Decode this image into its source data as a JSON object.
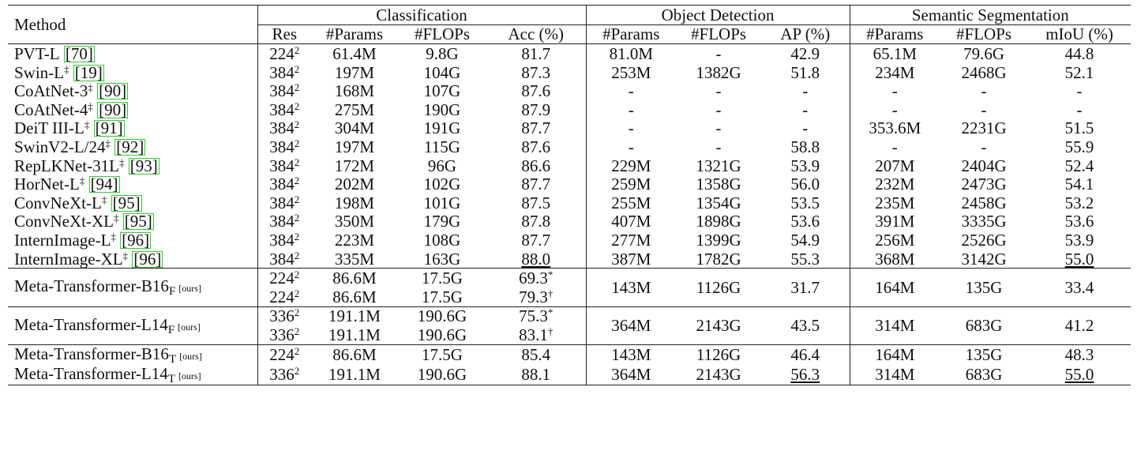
{
  "header": {
    "method": "Method",
    "groups": {
      "classification": "Classification",
      "detection": "Object Detection",
      "segmentation": "Semantic Segmentation"
    },
    "cols": [
      "Res",
      "#Params",
      "#FLOPs",
      "Acc (%)",
      "#Params",
      "#FLOPs",
      "AP (%)",
      "#Params",
      "#FLOPs",
      "mIoU (%)"
    ]
  },
  "rows": [
    {
      "name": "PVT-L",
      "sup": "",
      "cite": "[70]",
      "res": "224",
      "cp": "61.4M",
      "cf": "9.8G",
      "acc": "81.7",
      "dp": "81.0M",
      "df": "-",
      "ap": "42.9",
      "sp": "65.1M",
      "sf": "79.6G",
      "miou": "44.8"
    },
    {
      "name": "Swin-L",
      "sup": "‡",
      "cite": "[19]",
      "res": "384",
      "cp": "197M",
      "cf": "104G",
      "acc": "87.3",
      "dp": "253M",
      "df": "1382G",
      "ap": "51.8",
      "sp": "234M",
      "sf": "2468G",
      "miou": "52.1"
    },
    {
      "name": "CoAtNet-3",
      "sup": "‡",
      "cite": "[90]",
      "res": "384",
      "cp": "168M",
      "cf": "107G",
      "acc": "87.6",
      "dp": "-",
      "df": "-",
      "ap": "-",
      "sp": "-",
      "sf": "-",
      "miou": "-"
    },
    {
      "name": "CoAtNet-4",
      "sup": "‡",
      "cite": "[90]",
      "res": "384",
      "cp": "275M",
      "cf": "190G",
      "acc": "87.9",
      "dp": "-",
      "df": "-",
      "ap": "-",
      "sp": "-",
      "sf": "-",
      "miou": "-"
    },
    {
      "name": "DeiT III-L",
      "sup": "‡",
      "cite": "[91]",
      "res": "384",
      "cp": "304M",
      "cf": "191G",
      "acc": "87.7",
      "dp": "-",
      "df": "-",
      "ap": "-",
      "sp": "353.6M",
      "sf": "2231G",
      "miou": "51.5"
    },
    {
      "name": "SwinV2-L/24",
      "sup": "‡",
      "cite": "[92]",
      "res": "384",
      "cp": "197M",
      "cf": "115G",
      "acc": "87.6",
      "dp": "-",
      "df": "-",
      "ap": "58.8",
      "sp": "-",
      "sf": "-",
      "miou": "55.9"
    },
    {
      "name": "RepLKNet-31L",
      "sup": "‡",
      "cite": "[93]",
      "res": "384",
      "cp": "172M",
      "cf": "96G",
      "acc": "86.6",
      "dp": "229M",
      "df": "1321G",
      "ap": "53.9",
      "sp": "207M",
      "sf": "2404G",
      "miou": "52.4"
    },
    {
      "name": "HorNet-L",
      "sup": "‡",
      "cite": "[94]",
      "res": "384",
      "cp": "202M",
      "cf": "102G",
      "acc": "87.7",
      "dp": "259M",
      "df": "1358G",
      "ap": "56.0",
      "sp": "232M",
      "sf": "2473G",
      "miou": "54.1"
    },
    {
      "name": "ConvNeXt-L",
      "sup": "‡",
      "cite": "[95]",
      "res": "384",
      "cp": "198M",
      "cf": "101G",
      "acc": "87.5",
      "dp": "255M",
      "df": "1354G",
      "ap": "53.5",
      "sp": "235M",
      "sf": "2458G",
      "miou": "53.2"
    },
    {
      "name": "ConvNeXt-XL",
      "sup": "‡",
      "cite": "[95]",
      "res": "384",
      "cp": "350M",
      "cf": "179G",
      "acc": "87.8",
      "dp": "407M",
      "df": "1898G",
      "ap": "53.6",
      "sp": "391M",
      "sf": "3335G",
      "miou": "53.6"
    },
    {
      "name": "InternImage-L",
      "sup": "‡",
      "cite": "[96]",
      "res": "384",
      "cp": "223M",
      "cf": "108G",
      "acc": "87.7",
      "dp": "277M",
      "df": "1399G",
      "ap": "54.9",
      "sp": "256M",
      "sf": "2526G",
      "miou": "53.9"
    },
    {
      "name": "InternImage-XL",
      "sup": "‡",
      "cite": "[96]",
      "res": "384",
      "cp": "335M",
      "cf": "163G",
      "acc": "88.0",
      "dp": "387M",
      "df": "1782G",
      "ap": "55.3",
      "sp": "368M",
      "sf": "3142G",
      "miou": "55.0"
    }
  ],
  "ours_tag": "[ours]",
  "res_exp": "2",
  "meta": {
    "b16f": {
      "name": "Meta-Transformer-B16",
      "sub": "F",
      "r1": {
        "res": "224",
        "cp": "86.6M",
        "cf": "17.5G",
        "acc": "69.3",
        "mark": "*"
      },
      "r2": {
        "res": "224",
        "cp": "86.6M",
        "cf": "17.5G",
        "acc": "79.3",
        "mark": "†"
      },
      "dp": "143M",
      "df": "1126G",
      "ap": "31.7",
      "sp": "164M",
      "sf": "135G",
      "miou": "33.4"
    },
    "l14f": {
      "name": "Meta-Transformer-L14",
      "sub": "F",
      "r1": {
        "res": "336",
        "cp": "191.1M",
        "cf": "190.6G",
        "acc": "75.3",
        "mark": "*"
      },
      "r2": {
        "res": "336",
        "cp": "191.1M",
        "cf": "190.6G",
        "acc": "83.1",
        "mark": "†"
      },
      "dp": "364M",
      "df": "2143G",
      "ap": "43.5",
      "sp": "314M",
      "sf": "683G",
      "miou": "41.2"
    },
    "b16t": {
      "name": "Meta-Transformer-B16",
      "sub": "T",
      "res": "224",
      "cp": "86.6M",
      "cf": "17.5G",
      "acc": "85.4",
      "dp": "143M",
      "df": "1126G",
      "ap": "46.4",
      "sp": "164M",
      "sf": "135G",
      "miou": "48.3"
    },
    "l14t": {
      "name": "Meta-Transformer-L14",
      "sub": "T",
      "res": "336",
      "cp": "191.1M",
      "cf": "190.6G",
      "acc": "88.1",
      "dp": "364M",
      "df": "2143G",
      "ap": "56.3",
      "sp": "314M",
      "sf": "683G",
      "miou": "55.0"
    }
  }
}
